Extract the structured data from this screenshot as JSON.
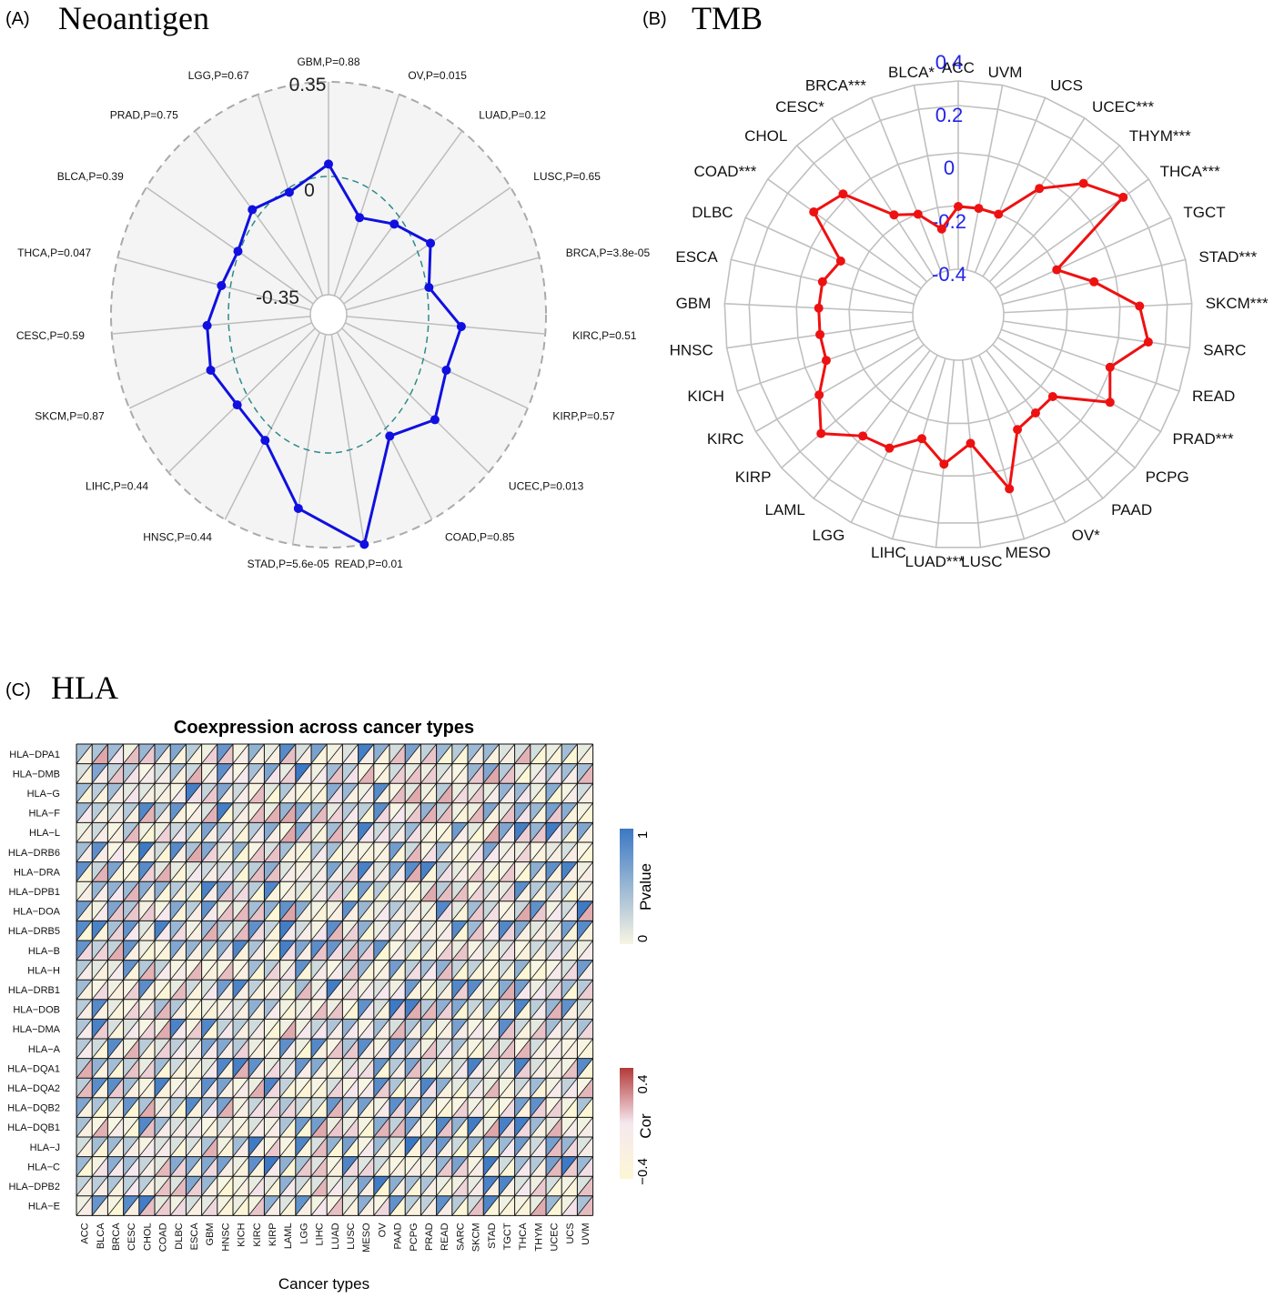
{
  "panels": {
    "a": {
      "letter": "(A)",
      "name": "Neoantigen"
    },
    "b": {
      "letter": "(B)",
      "name": "TMB"
    },
    "c": {
      "letter": "(C)",
      "name": "HLA"
    }
  },
  "chart_data": [
    {
      "type": "radar",
      "panel": "A",
      "ticks": [
        "0.35",
        "0",
        "-0.35"
      ],
      "rlim": [
        -0.525,
        0.35
      ],
      "categories": [
        "GBM,P=0.88",
        "OV,P=0.015",
        "LUAD,P=0.12",
        "LUSC,P=0.65",
        "BRCA,P=3.8e-05",
        "KIRC,P=0.51",
        "KIRP,P=0.57",
        "UCEC,P=0.013",
        "COAD,P=0.85",
        "READ,P=0.01",
        "STAD,P=5.6e-05",
        "HNSC,P=0.44",
        "LIHC,P=0.44",
        "SKCM,P=0.87",
        "CESC,P=0.59",
        "THCA,P=0.047",
        "BLCA,P=0.39",
        "PRAD,P=0.75",
        "LGG,P=0.67"
      ],
      "values": [
        0.012,
        -0.185,
        -0.135,
        -0.07,
        -0.15,
        -0.02,
        -0.04,
        0.03,
        -0.04,
        0.355,
        0.2,
        -0.02,
        -0.06,
        -0.04,
        -0.07,
        -0.12,
        -0.13,
        -0.06,
        -0.075
      ]
    },
    {
      "type": "radar",
      "panel": "B",
      "ticks": [
        "0.4",
        "0.2",
        "0",
        "-0.2",
        "-0.4"
      ],
      "rlim": [
        -0.5,
        0.4
      ],
      "categories": [
        "ACC",
        "UVM",
        "UCS",
        "UCEC***",
        "THYM***",
        "THCA***",
        "TGCT",
        "STAD***",
        "SKCM***",
        "SARC",
        "READ",
        "PRAD***",
        "PCPG",
        "PAAD",
        "OV*",
        "MESO",
        "LUSC",
        "LUAD***",
        "LIHC",
        "LGG",
        "LAML",
        "KIRP",
        "KIRC",
        "KICH",
        "HNSC",
        "GBM",
        "ESCA",
        "DLBC",
        "COAD***",
        "CHOL",
        "CESC*",
        "BRCA***",
        "BLCA*"
      ],
      "values": [
        -0.2,
        -0.2,
        -0.2,
        0.0,
        0.15,
        0.25,
        -0.2,
        -0.05,
        0.15,
        0.2,
        0.05,
        0.12,
        -0.12,
        -0.12,
        -0.1,
        0.15,
        -0.1,
        -0.0,
        -0.1,
        0.0,
        0.02,
        0.15,
        0.05,
        -0.05,
        -0.05,
        -0.05,
        -0.05,
        -0.1,
        0.13,
        0.08,
        -0.15,
        -0.2,
        -0.3
      ]
    },
    {
      "type": "heatmap",
      "panel": "C",
      "title": "Coexpression across cancer types",
      "xlabel": "Cancer types",
      "rows": [
        "HLA−DPA1",
        "HLA−DMB",
        "HLA−G",
        "HLA−F",
        "HLA−L",
        "HLA−DRB6",
        "HLA−DRA",
        "HLA−DPB1",
        "HLA−DOA",
        "HLA−DRB5",
        "HLA−B",
        "HLA−H",
        "HLA−DRB1",
        "HLA−DOB",
        "HLA−DMA",
        "HLA−A",
        "HLA−DQA1",
        "HLA−DQA2",
        "HLA−DQB2",
        "HLA−DQB1",
        "HLA−J",
        "HLA−C",
        "HLA−DPB2",
        "HLA−E"
      ],
      "columns": [
        "ACC",
        "BLCA",
        "BRCA",
        "CESC",
        "CHOL",
        "COAD",
        "DLBC",
        "ESCA",
        "GBM",
        "HNSC",
        "KICH",
        "KIRC",
        "KIRP",
        "LAML",
        "LGG",
        "LIHC",
        "LUAD",
        "LUSC",
        "MESO",
        "OV",
        "PAAD",
        "PCPG",
        "PRAD",
        "READ",
        "SARC",
        "SKCM",
        "STAD",
        "TGCT",
        "THCA",
        "THYM",
        "UCEC",
        "UCS",
        "UVM"
      ],
      "legend_pvalue": {
        "title": "Pvalue",
        "max_label": "1",
        "min_label": "0",
        "colors": [
          "#f7f5e3",
          "#3b78c4"
        ]
      },
      "legend_cor": {
        "title": "Cor",
        "max_label": "0.4",
        "min_label": "−0.4",
        "colors": [
          "#fdf7d5",
          "#f5e8ee",
          "#b33a3a"
        ]
      }
    }
  ]
}
